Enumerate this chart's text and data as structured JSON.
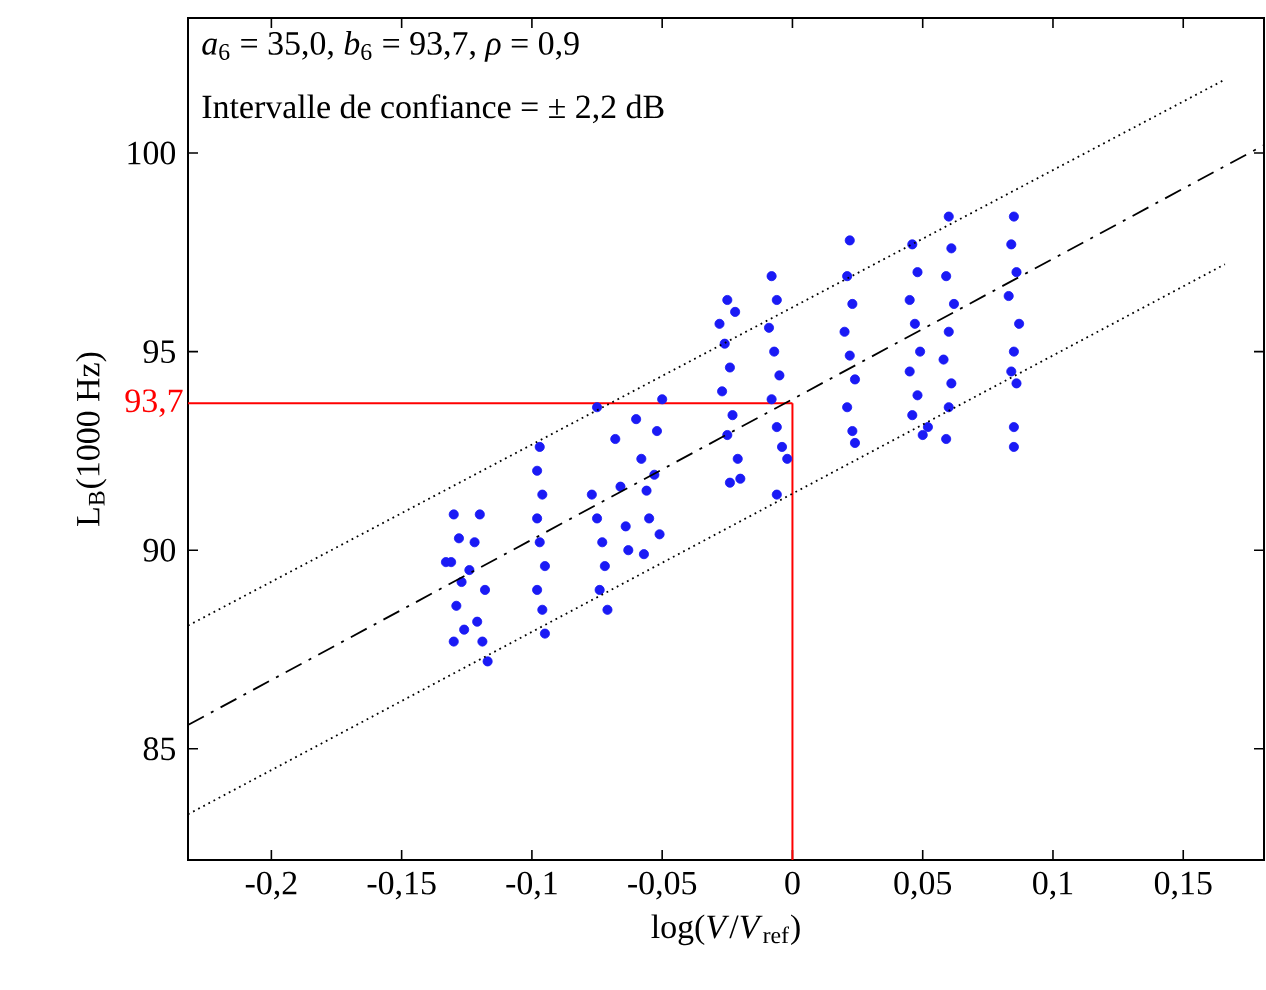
{
  "chart_data": {
    "type": "scatter",
    "xlabel": "log(*V*/*V*$_{ref}$)",
    "ylabel": "L$_{B}$(1000 Hz)",
    "annotations": [
      "*a*$_{6}$ = 35,0, *b*$_{6}$ = 93,7, *ρ* = 0,9",
      "Intervalle de confiance = ± 2,2 dB"
    ],
    "xlim": [
      -0.232,
      0.181
    ],
    "ylim": [
      82.2,
      103.4
    ],
    "xticks": [
      {
        "value": -0.2,
        "label": "-0,2"
      },
      {
        "value": -0.15,
        "label": "-0,15"
      },
      {
        "value": -0.1,
        "label": "-0,1"
      },
      {
        "value": -0.05,
        "label": "-0,05"
      },
      0,
      {
        "value": 0.05,
        "label": "0,05"
      },
      {
        "value": 0.1,
        "label": "0,1"
      },
      {
        "value": 0.15,
        "label": "0,15"
      }
    ],
    "yticks": [
      85,
      90,
      95,
      100
    ],
    "grid": false,
    "ref_lines": [
      {
        "axis": "y",
        "value": 93.7,
        "label": "93,7",
        "color": "#ff0000"
      },
      {
        "axis": "x",
        "value": 0,
        "color": "#ff0000"
      }
    ],
    "series": [
      {
        "color": "#1a1af5",
        "marker": "circle",
        "x": [
          -0.133,
          -0.13,
          -0.128,
          -0.131,
          -0.127,
          -0.129,
          -0.126,
          -0.13,
          -0.124,
          -0.122,
          -0.12,
          -0.118,
          -0.121,
          -0.119,
          -0.117,
          -0.097,
          -0.098,
          -0.096,
          -0.098,
          -0.097,
          -0.095,
          -0.098,
          -0.096,
          -0.095,
          -0.075,
          -0.077,
          -0.075,
          -0.073,
          -0.072,
          -0.074,
          -0.071,
          -0.068,
          -0.066,
          -0.064,
          -0.063,
          -0.06,
          -0.058,
          -0.056,
          -0.055,
          -0.053,
          -0.052,
          -0.05,
          -0.051,
          -0.057,
          -0.025,
          -0.022,
          -0.026,
          -0.024,
          -0.027,
          -0.023,
          -0.025,
          -0.021,
          -0.024,
          -0.02,
          -0.028,
          -0.008,
          -0.006,
          -0.009,
          -0.007,
          -0.005,
          -0.008,
          -0.006,
          -0.004,
          -0.002,
          -0.006,
          0.022,
          0.021,
          0.023,
          0.02,
          0.022,
          0.024,
          0.021,
          0.023,
          0.024,
          0.046,
          0.048,
          0.045,
          0.047,
          0.049,
          0.045,
          0.048,
          0.046,
          0.05,
          0.052,
          0.06,
          0.061,
          0.059,
          0.062,
          0.06,
          0.058,
          0.061,
          0.06,
          0.059,
          0.085,
          0.084,
          0.086,
          0.083,
          0.087,
          0.085,
          0.084,
          0.086,
          0.085,
          0.085
        ],
        "values": [
          89.7,
          90.9,
          90.3,
          89.7,
          89.2,
          88.6,
          88.0,
          87.7,
          89.5,
          90.2,
          90.9,
          89.0,
          88.2,
          87.7,
          87.2,
          92.6,
          92.0,
          91.4,
          90.8,
          90.2,
          89.6,
          89.0,
          88.5,
          87.9,
          93.6,
          91.4,
          90.8,
          90.2,
          89.6,
          89.0,
          88.5,
          92.8,
          91.6,
          90.6,
          90.0,
          93.3,
          92.3,
          91.5,
          90.8,
          91.9,
          93.0,
          93.8,
          90.4,
          89.9,
          96.3,
          96.0,
          95.2,
          94.6,
          94.0,
          93.4,
          92.9,
          92.3,
          91.7,
          91.8,
          95.7,
          96.9,
          96.3,
          95.6,
          95.0,
          94.4,
          93.8,
          93.1,
          92.6,
          92.3,
          91.4,
          97.8,
          96.9,
          96.2,
          95.5,
          94.9,
          94.3,
          93.6,
          93.0,
          92.7,
          97.7,
          97.0,
          96.3,
          95.7,
          95.0,
          94.5,
          93.9,
          93.4,
          92.9,
          93.1,
          98.4,
          97.6,
          96.9,
          96.2,
          95.5,
          94.8,
          94.2,
          93.6,
          92.8,
          98.4,
          97.7,
          97.0,
          96.4,
          95.7,
          95.0,
          94.5,
          94.2,
          93.1,
          92.6
        ]
      },
      {
        "type": "line",
        "color": "#000000",
        "line_style": "dashed",
        "marker": "none",
        "x": [
          -0.232,
          0.181
        ],
        "values": [
          85.6,
          100.2
        ]
      },
      {
        "type": "line",
        "color": "#000000",
        "line_style": "dotted",
        "marker": "none",
        "x": [
          -0.232,
          0.166
        ],
        "values": [
          88.1,
          101.85
        ]
      },
      {
        "type": "line",
        "color": "#000000",
        "line_style": "dotted",
        "marker": "none",
        "x": [
          -0.232,
          0.166
        ],
        "values": [
          83.35,
          97.2
        ]
      }
    ]
  }
}
